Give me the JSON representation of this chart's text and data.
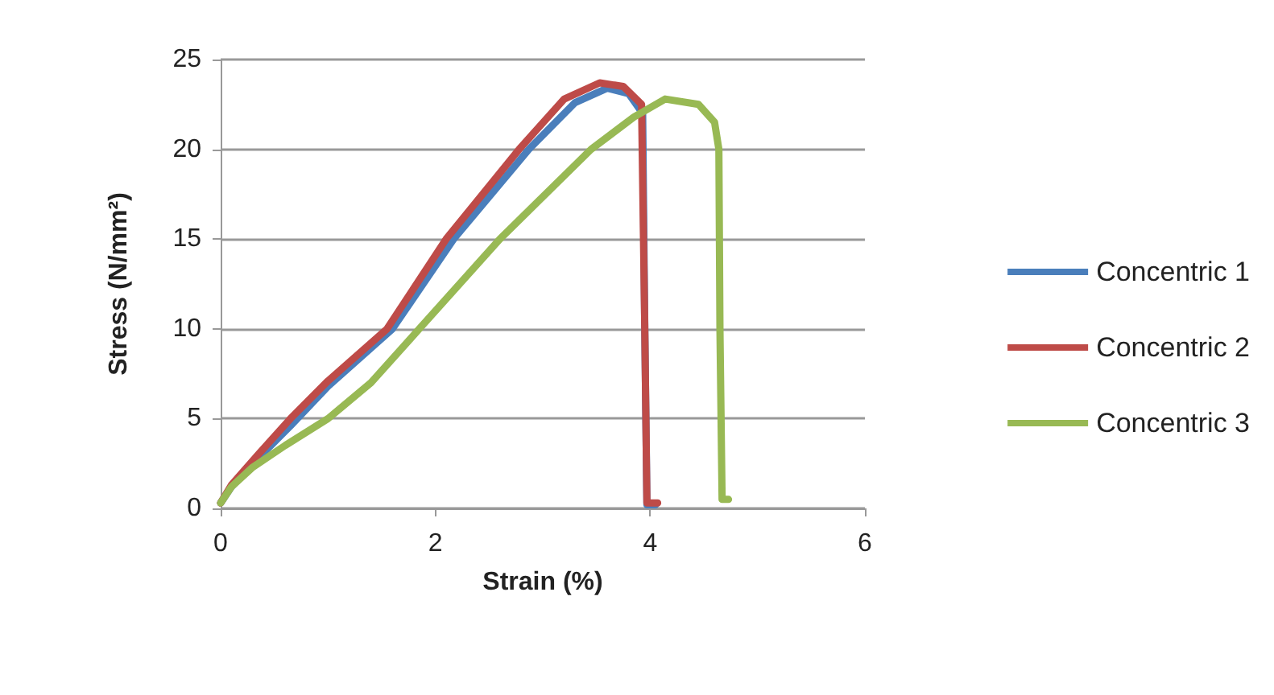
{
  "chart_data": {
    "type": "line",
    "xlabel": "Strain (%)",
    "ylabel": "Stress (N/mm²)",
    "xlim": [
      0,
      6
    ],
    "xticks": [
      0,
      2,
      4,
      6
    ],
    "ylim": [
      0,
      25
    ],
    "yticks": [
      0,
      5,
      10,
      15,
      20,
      25
    ],
    "grid": "y",
    "legend": "right",
    "marker": "none",
    "line_style": "solid",
    "series": [
      {
        "name": "Concentric 1",
        "color": "#4a7ebb",
        "x": [
          0,
          0.1,
          0.35,
          0.65,
          1.0,
          1.6,
          2.17,
          2.87,
          3.3,
          3.6,
          3.8,
          3.93,
          3.95,
          3.97,
          4.05
        ],
        "values": [
          0.3,
          1.2,
          2.8,
          4.6,
          6.8,
          10,
          15,
          20,
          22.6,
          23.4,
          23.1,
          22,
          10,
          0.2,
          0.2
        ]
      },
      {
        "name": "Concentric 2",
        "color": "#be4b48",
        "x": [
          0,
          0.1,
          0.35,
          0.65,
          1.0,
          1.55,
          2.1,
          2.78,
          3.2,
          3.53,
          3.75,
          3.92,
          3.95,
          3.97,
          4.07
        ],
        "values": [
          0.3,
          1.3,
          3.0,
          5.0,
          7.1,
          10,
          15,
          20,
          22.8,
          23.7,
          23.5,
          22.5,
          10,
          0.3,
          0.3
        ]
      },
      {
        "name": "Concentric 3",
        "color": "#98b954",
        "x": [
          0,
          0.1,
          0.3,
          0.6,
          1.0,
          1.4,
          1.85,
          2.6,
          3.45,
          3.85,
          4.14,
          4.45,
          4.6,
          4.64,
          4.65,
          4.67,
          4.73
        ],
        "values": [
          0.3,
          1.2,
          2.3,
          3.5,
          5.0,
          7.0,
          10,
          15,
          20,
          21.8,
          22.8,
          22.5,
          21.5,
          20,
          10,
          0.5,
          0.5
        ]
      }
    ]
  }
}
